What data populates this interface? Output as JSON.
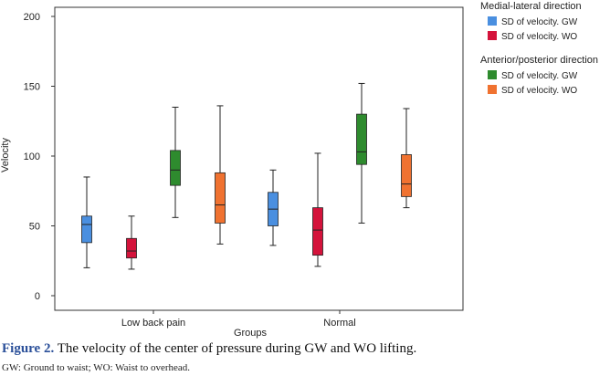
{
  "chart_data": {
    "type": "boxplot",
    "xlabel": "Groups",
    "ylabel": "Velocity",
    "ylim": [
      0,
      200
    ],
    "yticks": [
      0,
      50,
      100,
      150,
      200
    ],
    "grid": false,
    "categories": [
      "Low back pain",
      "Normal"
    ],
    "legend_groups": [
      {
        "title": "Medial-lateral direction",
        "series_indices": [
          0,
          1
        ]
      },
      {
        "title": "Anterior/posterior direction",
        "series_indices": [
          2,
          3
        ]
      }
    ],
    "series": [
      {
        "name": "SD of velocity. GW",
        "color": "#4a8fe0",
        "boxes": [
          {
            "min": 20,
            "q1": 38,
            "median": 51,
            "q3": 57,
            "max": 85
          },
          {
            "min": 36,
            "q1": 50,
            "median": 62,
            "q3": 74,
            "max": 90
          }
        ]
      },
      {
        "name": "SD of velocity. WO",
        "color": "#d4133b",
        "boxes": [
          {
            "min": 19,
            "q1": 27,
            "median": 32,
            "q3": 41,
            "max": 57
          },
          {
            "min": 21,
            "q1": 29,
            "median": 47,
            "q3": 63,
            "max": 102
          }
        ]
      },
      {
        "name": "SD of velocity. GW",
        "color": "#2e8b2e",
        "boxes": [
          {
            "min": 56,
            "q1": 79,
            "median": 90,
            "q3": 104,
            "max": 135
          },
          {
            "min": 52,
            "q1": 94,
            "median": 103,
            "q3": 130,
            "max": 152
          }
        ]
      },
      {
        "name": "SD of velocity. WO",
        "color": "#f07230",
        "boxes": [
          {
            "min": 37,
            "q1": 52,
            "median": 65,
            "q3": 88,
            "max": 136
          },
          {
            "min": 63,
            "q1": 71,
            "median": 80,
            "q3": 101,
            "max": 134
          }
        ]
      }
    ]
  },
  "caption": {
    "label": "Figure 2.",
    "text": " The velocity of the center of pressure during GW and WO lifting."
  },
  "footnote": "GW: Ground to waist; WO: Waist to overhead."
}
